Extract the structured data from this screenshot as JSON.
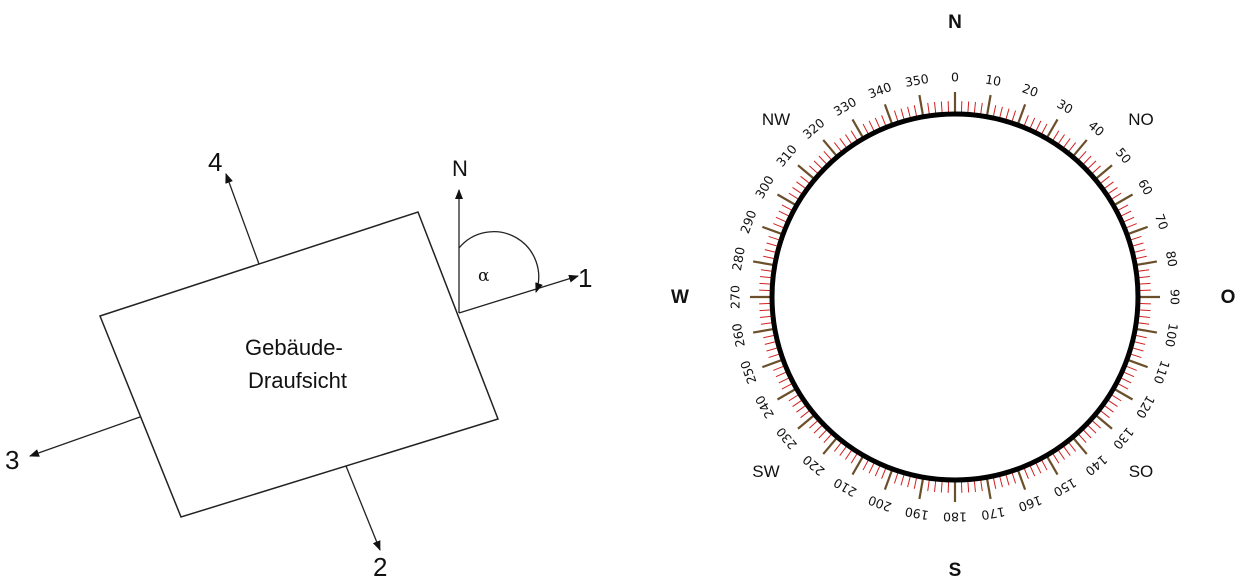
{
  "building": {
    "label_line1": "Gebäude-",
    "label_line2": "Draufsicht",
    "facades": [
      "1",
      "2",
      "3",
      "4"
    ],
    "north": "N",
    "angle": "α"
  },
  "compass": {
    "cardinals": {
      "north": "N",
      "south": "S",
      "west": "W",
      "east": "O"
    },
    "intercardinals": {
      "nw": "NW",
      "no": "NO",
      "sw": "SW",
      "so": "SO"
    },
    "degree_labels": [
      "0",
      "10",
      "20",
      "30",
      "40",
      "50",
      "60",
      "70",
      "80",
      "90",
      "100",
      "110",
      "120",
      "130",
      "140",
      "150",
      "160",
      "170",
      "180",
      "190",
      "200",
      "210",
      "220",
      "230",
      "240",
      "250",
      "260",
      "270",
      "280",
      "290",
      "300",
      "310",
      "320",
      "330",
      "340",
      "350"
    ],
    "colors": {
      "minor_tick": "#d21f1f",
      "major_tick": "#6b4f2a",
      "ring": "#000000"
    }
  }
}
